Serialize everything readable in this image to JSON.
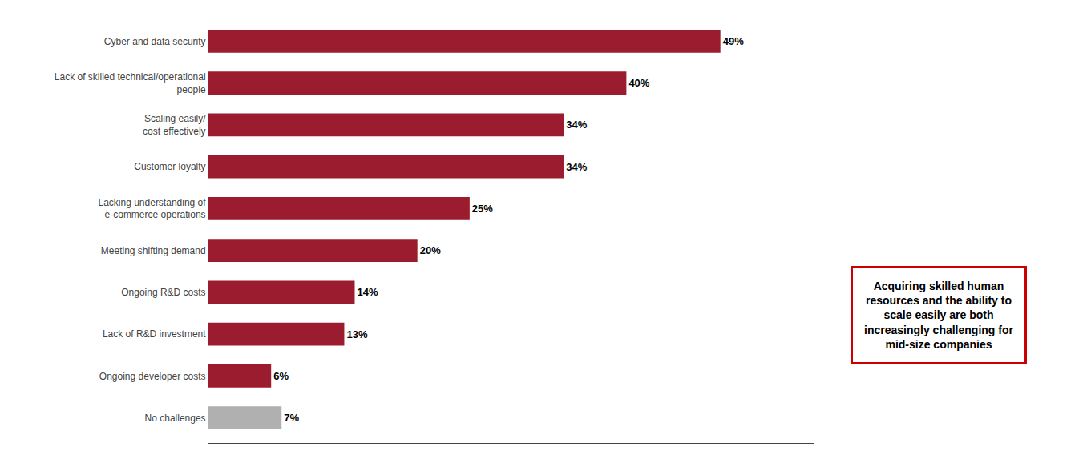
{
  "chart_data": {
    "type": "bar",
    "orientation": "horizontal",
    "categories": [
      "No challenges",
      "Ongoing developer costs",
      "Lack of R&D investment",
      "Ongoing R&D costs",
      "Meeting shifting demand",
      "Lacking understanding of\ne-commerce operations",
      "Customer loyalty",
      "Scaling easily/\ncost effectively",
      "Lack of skilled technical/operational\npeople",
      "Cyber and data security"
    ],
    "values": [
      7,
      6,
      13,
      14,
      20,
      25,
      34,
      34,
      40,
      49
    ],
    "value_labels": [
      "7%",
      "6%",
      "13%",
      "14%",
      "20%",
      "25%",
      "34%",
      "34%",
      "40%",
      "49%"
    ],
    "colors": [
      "#b0b0b0",
      "#9b1c2e",
      "#9b1c2e",
      "#9b1c2e",
      "#9b1c2e",
      "#9b1c2e",
      "#9b1c2e",
      "#9b1c2e",
      "#9b1c2e",
      "#9b1c2e"
    ],
    "data_labels": true,
    "xlim": [
      0,
      58
    ],
    "tick_labels": "y",
    "grid": false,
    "annotations": [
      {
        "text": "Acquiring skilled human\nresources and the ability to\nscale easily are both\nincreasingly challenging for\nmid-size companies",
        "color": "#cc0000"
      }
    ]
  }
}
